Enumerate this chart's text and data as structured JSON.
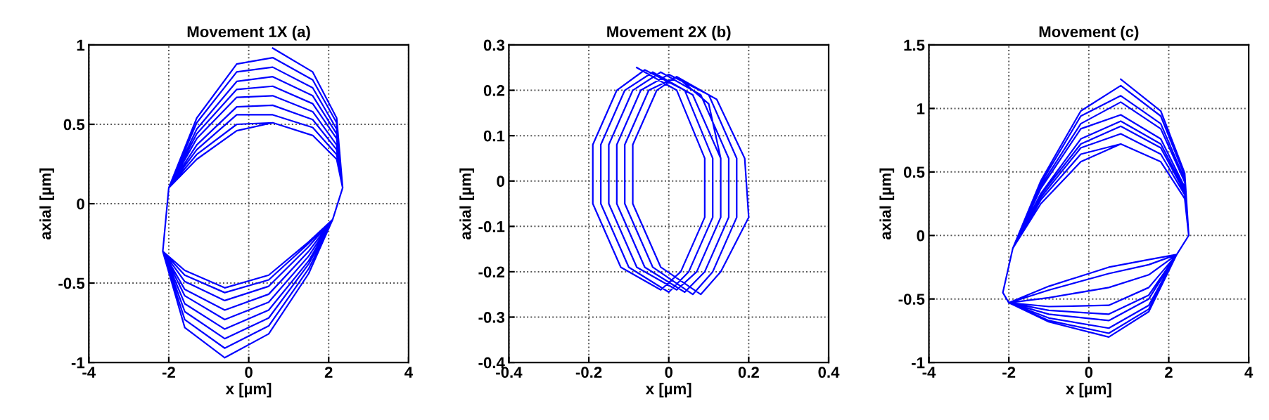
{
  "chart_data": [
    {
      "type": "line",
      "title": "Movement 1X (a)",
      "xlabel": "x [µm]",
      "ylabel": "axial [µm]",
      "xlim": [
        -4,
        4
      ],
      "xticks": [
        -4,
        -2,
        0,
        2,
        4
      ],
      "ylim": [
        -1,
        1
      ],
      "yticks": [
        -1,
        -0.5,
        0,
        0.5,
        1
      ],
      "grid": true,
      "line_style": "solid",
      "series": [
        {
          "color": "#0000ff",
          "x": [
            0.6,
            1.6,
            2.2,
            2.35,
            2.1,
            1.5,
            0.5,
            -0.6,
            -1.6,
            -2.15,
            -2.0,
            -1.3,
            -0.3,
            0.6,
            1.6,
            2.2,
            2.35,
            2.1,
            1.5,
            0.5,
            -0.6,
            -1.6,
            -2.15,
            -2.0,
            -1.3,
            -0.3,
            0.6,
            1.6,
            2.2,
            2.35,
            2.1,
            1.5,
            0.5,
            -0.6,
            -1.6,
            -2.15,
            -2.0,
            -1.3,
            -0.3,
            0.6,
            1.6,
            2.2,
            2.35,
            2.1,
            1.5,
            0.5,
            -0.6,
            -1.6,
            -2.15,
            -2.0,
            -1.3,
            -0.3,
            0.6,
            1.6,
            2.2,
            2.35,
            2.1,
            1.5,
            0.5,
            -0.6,
            -1.6,
            -2.15,
            -2.0,
            -1.3,
            -0.3,
            0.6,
            1.6,
            2.2,
            2.35,
            2.1,
            1.5,
            0.5,
            -0.6,
            -1.6,
            -2.15,
            -2.0,
            -1.3,
            -0.3,
            0.6,
            1.6,
            2.2,
            2.35,
            2.1,
            1.5,
            0.5,
            -0.6,
            -1.6,
            -2.15,
            -2.0,
            -1.3,
            -0.3,
            0.6,
            1.6,
            2.2,
            2.35,
            2.1,
            1.5,
            0.5,
            -0.6,
            -1.6,
            -2.15,
            -2.0,
            -1.3,
            -0.3,
            0.6,
            1.6,
            2.2,
            2.35,
            2.1,
            1.5,
            0.5,
            -0.6,
            -1.6,
            -2.15,
            -2.0,
            -1.3,
            -0.3,
            0.6,
            1.6,
            2.2
          ],
          "values": [
            0.98,
            0.83,
            0.54,
            0.1,
            -0.1,
            -0.44,
            -0.82,
            -0.97,
            -0.78,
            -0.3,
            0.1,
            0.54,
            0.88,
            0.92,
            0.78,
            0.51,
            0.1,
            -0.1,
            -0.41,
            -0.77,
            -0.91,
            -0.73,
            -0.3,
            0.1,
            0.51,
            0.83,
            0.86,
            0.73,
            0.47,
            0.1,
            -0.1,
            -0.38,
            -0.72,
            -0.85,
            -0.68,
            -0.3,
            0.1,
            0.47,
            0.77,
            0.8,
            0.68,
            0.44,
            0.1,
            -0.1,
            -0.36,
            -0.67,
            -0.79,
            -0.63,
            -0.3,
            0.1,
            0.44,
            0.72,
            0.74,
            0.63,
            0.41,
            0.1,
            -0.1,
            -0.33,
            -0.62,
            -0.73,
            -0.58,
            -0.3,
            0.1,
            0.41,
            0.67,
            0.68,
            0.58,
            0.37,
            0.1,
            -0.1,
            -0.3,
            -0.57,
            -0.67,
            -0.54,
            -0.3,
            0.1,
            0.37,
            0.61,
            0.62,
            0.53,
            0.34,
            0.1,
            -0.1,
            -0.27,
            -0.52,
            -0.61,
            -0.49,
            -0.3,
            0.1,
            0.34,
            0.56,
            0.56,
            0.48,
            0.31,
            0.1,
            -0.1,
            -0.25,
            -0.48,
            -0.56,
            -0.45,
            -0.3,
            0.1,
            0.31,
            0.5,
            0.51,
            0.43,
            0.28,
            0.1,
            -0.1,
            -0.24,
            -0.45,
            -0.53,
            -0.42,
            -0.3,
            0.1,
            0.28,
            0.46,
            0.51,
            0.43,
            0.28
          ]
        }
      ]
    },
    {
      "type": "line",
      "title": "Movement 2X (b)",
      "xlabel": "x [µm]",
      "ylabel": "axial [µm]",
      "xlim": [
        -0.4,
        0.4
      ],
      "xticks": [
        -0.4,
        -0.2,
        0,
        0.2,
        0.4
      ],
      "ylim": [
        -0.4,
        0.3
      ],
      "yticks": [
        -0.4,
        -0.3,
        -0.2,
        -0.1,
        0,
        0.1,
        0.2,
        0.3
      ],
      "grid": true,
      "line_style": "solid",
      "series": [
        {
          "color": "#0000ff",
          "x": [
            -0.08,
            0.02,
            0.09,
            0.09,
            0.03,
            -0.02,
            -0.12,
            -0.19,
            -0.19,
            -0.13,
            -0.06,
            0.04,
            0.11,
            0.11,
            0.05,
            0.0,
            -0.1,
            -0.17,
            -0.17,
            -0.11,
            -0.04,
            0.06,
            0.13,
            0.13,
            0.07,
            0.02,
            -0.08,
            -0.15,
            -0.15,
            -0.09,
            -0.02,
            0.08,
            0.15,
            0.15,
            0.09,
            0.04,
            -0.06,
            -0.13,
            -0.13,
            -0.07,
            0.0,
            0.1,
            0.17,
            0.17,
            0.11,
            0.06,
            -0.04,
            -0.11,
            -0.11,
            -0.05,
            0.02,
            0.12,
            0.19,
            0.2,
            0.13,
            0.08,
            -0.02,
            -0.09,
            -0.09,
            -0.03,
            0.02,
            0.1,
            0.13,
            0.13
          ],
          "values": [
            0.25,
            0.2,
            0.05,
            -0.08,
            -0.2,
            -0.24,
            -0.19,
            -0.05,
            0.08,
            0.2,
            0.245,
            0.2,
            0.05,
            -0.08,
            -0.2,
            -0.245,
            -0.19,
            -0.05,
            0.08,
            0.2,
            0.24,
            0.19,
            0.05,
            -0.08,
            -0.2,
            -0.24,
            -0.19,
            -0.05,
            0.08,
            0.2,
            0.24,
            0.19,
            0.05,
            -0.08,
            -0.2,
            -0.245,
            -0.19,
            -0.05,
            0.08,
            0.2,
            0.235,
            0.19,
            0.05,
            -0.08,
            -0.2,
            -0.25,
            -0.19,
            -0.05,
            0.08,
            0.2,
            0.23,
            0.18,
            0.05,
            -0.08,
            -0.2,
            -0.25,
            -0.19,
            -0.05,
            0.08,
            0.2,
            0.23,
            0.17,
            0.05,
            -0.02
          ]
        }
      ]
    },
    {
      "type": "line",
      "title": "Movement (c)",
      "xlabel": "x [µm]",
      "ylabel": "axial [µm]",
      "xlim": [
        -4,
        4
      ],
      "xticks": [
        -4,
        -2,
        0,
        2,
        4
      ],
      "ylim": [
        -1,
        1.5
      ],
      "yticks": [
        -1,
        -0.5,
        0,
        0.5,
        1,
        1.5
      ],
      "grid": true,
      "line_style": "solid",
      "series": [
        {
          "color": "#0000ff",
          "x": [
            0.8,
            1.8,
            2.4,
            2.5,
            2.2,
            1.5,
            0.5,
            -1,
            -2,
            -2.15,
            -1.9,
            -1.2,
            -0.2,
            0.8,
            1.8,
            2.4,
            2.5,
            2.2,
            1.5,
            0.5,
            -1,
            -2,
            -2.15,
            -1.9,
            -1.2,
            -0.2,
            0.8,
            1.8,
            2.4,
            2.5,
            2.2,
            1.5,
            0.5,
            -1,
            -2,
            -2.15,
            -1.9,
            -1.2,
            -0.2,
            0.8,
            1.8,
            2.4,
            2.5,
            2.2,
            1.5,
            0.5,
            -1,
            -2,
            -2.15,
            -1.9,
            -1.2,
            -0.2,
            0.8,
            1.8,
            2.4,
            2.5,
            2.2,
            1.5,
            0.5,
            -1,
            -2,
            -2.15,
            -1.9,
            -1.2,
            -0.2,
            0.8,
            1.8,
            2.4,
            2.5,
            2.2,
            1.5,
            0.5,
            -1,
            -2,
            -2.15,
            -1.9,
            -1.2,
            -0.2,
            0.8,
            1.8,
            2.4,
            2.5,
            2.2,
            1.5,
            0.5,
            -1,
            -2,
            -2.15,
            -1.9,
            -1.2,
            -0.2,
            0.8,
            1.8,
            2.4,
            2.5,
            2.2,
            1.5,
            0.5,
            -1,
            -2,
            -2.15,
            -1.9,
            -1.2,
            -0.2,
            0.8,
            1.8,
            2.4,
            2.5,
            2.2,
            1.5,
            0.5,
            -1,
            -2,
            -2.15,
            -1.9,
            -1.2,
            -0.2,
            0.8,
            1.8,
            2.4
          ],
          "values": [
            1.23,
            0.98,
            0.49,
            0,
            -0.15,
            -0.6,
            -0.8,
            -0.68,
            -0.53,
            -0.45,
            -0.1,
            0.43,
            0.98,
            1.18,
            0.94,
            0.47,
            0,
            -0.15,
            -0.58,
            -0.77,
            -0.67,
            -0.53,
            -0.45,
            -0.1,
            0.41,
            0.94,
            1.1,
            0.88,
            0.44,
            0,
            -0.15,
            -0.55,
            -0.73,
            -0.65,
            -0.53,
            -0.45,
            -0.1,
            0.39,
            0.88,
            1.05,
            0.84,
            0.42,
            0,
            -0.15,
            -0.5,
            -0.67,
            -0.62,
            -0.53,
            -0.45,
            -0.1,
            0.37,
            0.84,
            0.95,
            0.76,
            0.38,
            0,
            -0.15,
            -0.47,
            -0.62,
            -0.59,
            -0.53,
            -0.45,
            -0.1,
            0.33,
            0.76,
            0.9,
            0.72,
            0.36,
            0,
            -0.15,
            -0.41,
            -0.55,
            -0.56,
            -0.53,
            -0.45,
            -0.1,
            0.32,
            0.72,
            0.86,
            0.69,
            0.34,
            0,
            -0.15,
            -0.31,
            -0.41,
            -0.49,
            -0.53,
            -0.45,
            -0.1,
            0.3,
            0.69,
            0.8,
            0.64,
            0.32,
            0,
            -0.15,
            -0.23,
            -0.3,
            -0.43,
            -0.53,
            -0.45,
            -0.1,
            0.28,
            0.64,
            0.72,
            0.58,
            0.29,
            0,
            -0.15,
            -0.19,
            -0.25,
            -0.4,
            -0.53,
            -0.45,
            -0.1,
            0.25,
            0.58,
            0.72,
            0.58,
            0.29
          ]
        }
      ]
    }
  ]
}
